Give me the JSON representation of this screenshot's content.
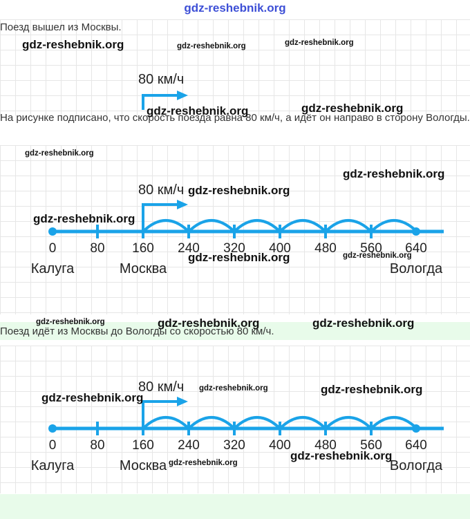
{
  "site_title": "gdz-reshebnik.org",
  "texts": {
    "intro": "Поезд вышел из Москвы.",
    "explain": "На рисунке подписано, что скорость поезда равна 80 км/ч, а идёт он направо в сторону Вологды.",
    "summary": "Поезд идёт из Москвы до Вологды со скоростью 80 км/ч."
  },
  "speed_label": "80 км/ч",
  "ticks": [
    "0",
    "80",
    "160",
    "240",
    "320",
    "400",
    "480",
    "560",
    "640"
  ],
  "cities": {
    "start": "Калуга",
    "from": "Москва",
    "to": "Вологда"
  },
  "watermark": "gdz-reshebnik.org",
  "colors": {
    "line": "#1aa3e8",
    "title": "#3d4fd6",
    "band": "#e8fbea"
  }
}
